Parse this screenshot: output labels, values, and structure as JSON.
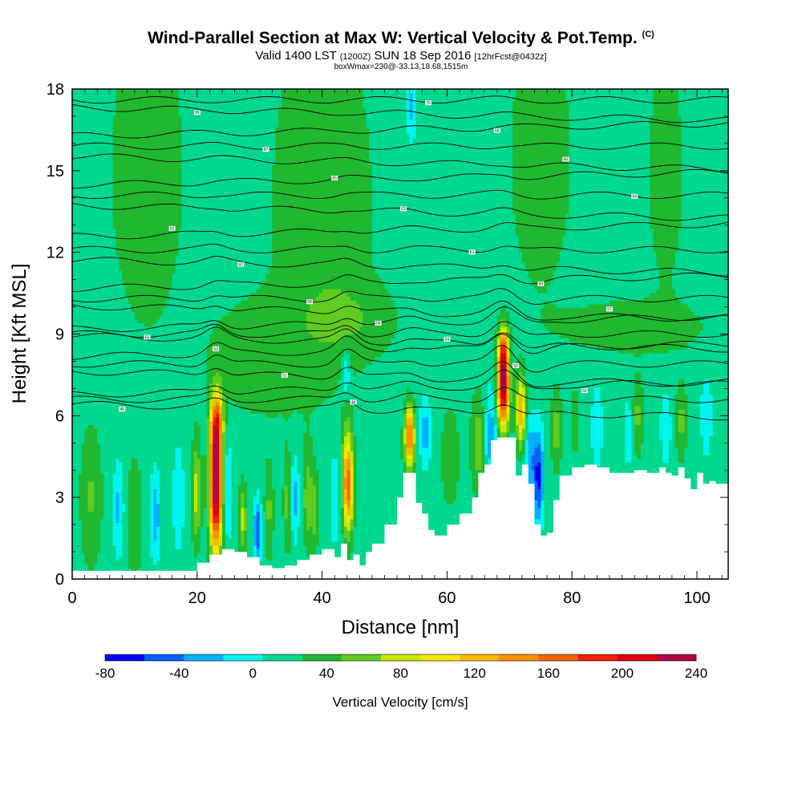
{
  "chart_data": {
    "type": "heatmap",
    "title": "Wind-Parallel Section at Max W: Vertical Velocity & Pot.Temp.",
    "copyright": "(C)",
    "subtitle_main": "Valid 1400 LST",
    "subtitle_utc": "(1200Z)",
    "subtitle_date": "SUN 18 Sep 2016",
    "subtitle_fcst": "[12hrFcst@0432z]",
    "subtitle2": "boxWmax=230@-33.13,18.68,1515m",
    "xlabel": "Distance [nm]",
    "ylabel": "Height [Kft MSL]",
    "xlim": [
      0,
      105
    ],
    "ylim": [
      0,
      18
    ],
    "x_ticks": [
      0,
      20,
      40,
      60,
      80,
      100
    ],
    "y_ticks": [
      0,
      3,
      6,
      9,
      12,
      15,
      18
    ],
    "colorbar": {
      "label": "Vertical Velocity [cm/s]",
      "min": -80,
      "max": 240,
      "step": 20,
      "tick_values": [
        -80,
        -40,
        0,
        40,
        80,
        120,
        160,
        200,
        240
      ],
      "tick_labels": [
        "-80",
        "-40",
        "0",
        "40",
        "80",
        "120",
        "160",
        "200",
        "240"
      ],
      "colors": [
        "#0000ee",
        "#0060ff",
        "#00b0ff",
        "#00f5f0",
        "#00d890",
        "#20b830",
        "#60cc20",
        "#c8e800",
        "#f8e800",
        "#f8b800",
        "#f89000",
        "#f86000",
        "#f02000",
        "#e00000",
        "#b00040"
      ]
    },
    "background_w": 10,
    "terrain": {
      "x": [
        0,
        19,
        20,
        22,
        24,
        26,
        28,
        30,
        32,
        34,
        36,
        38,
        40,
        42,
        43,
        44,
        45,
        46,
        47,
        48,
        50,
        52,
        53,
        54,
        55,
        56,
        57,
        58,
        60,
        62,
        64,
        65,
        66,
        67,
        68,
        70,
        71,
        72,
        73,
        74,
        75,
        76,
        77,
        78,
        80,
        82,
        84,
        86,
        88,
        90,
        92,
        94,
        95,
        96,
        97,
        98,
        99,
        100,
        101,
        102,
        103,
        105
      ],
      "height": [
        0.3,
        0.3,
        0.6,
        0.9,
        1.1,
        1.0,
        0.8,
        0.5,
        0.4,
        0.5,
        0.7,
        0.9,
        1.1,
        0.8,
        1.3,
        0.7,
        0.9,
        0.5,
        1.0,
        1.3,
        2.0,
        3.0,
        3.9,
        3.9,
        2.8,
        2.4,
        1.8,
        1.6,
        2.0,
        2.4,
        3.0,
        3.9,
        4.2,
        5.1,
        5.2,
        5.2,
        3.8,
        4.2,
        3.5,
        2.0,
        1.6,
        1.7,
        2.9,
        3.8,
        4.1,
        4.2,
        4.1,
        3.9,
        3.9,
        4.0,
        3.9,
        4.1,
        3.9,
        3.8,
        4.1,
        3.7,
        3.3,
        3.9,
        3.5,
        3.6,
        3.5,
        3.5
      ]
    },
    "w_features": [
      {
        "x": 23,
        "y": 3.5,
        "sx": 0.7,
        "sy": 1.7,
        "w": 225
      },
      {
        "x": 23.2,
        "y": 5.8,
        "sx": 0.7,
        "sy": 0.8,
        "w": 90
      },
      {
        "x": 69,
        "y": 7.2,
        "sx": 0.65,
        "sy": 1.1,
        "w": 215
      },
      {
        "x": 69,
        "y": 8.5,
        "sx": 0.5,
        "sy": 0.5,
        "w": 60
      },
      {
        "x": 71.8,
        "y": 6.2,
        "sx": 0.5,
        "sy": 0.9,
        "w": 110
      },
      {
        "x": 44.2,
        "y": 3.2,
        "sx": 0.55,
        "sy": 1.1,
        "w": 110
      },
      {
        "x": 44.0,
        "y": 4.4,
        "sx": 0.6,
        "sy": 1.2,
        "w": 50
      },
      {
        "x": 54.0,
        "y": 5.4,
        "sx": 0.5,
        "sy": 0.7,
        "w": 110
      },
      {
        "x": 54.0,
        "y": 4.6,
        "sx": 0.7,
        "sy": 1.0,
        "w": 40
      },
      {
        "x": 19.9,
        "y": 3.2,
        "sx": 0.5,
        "sy": 1.3,
        "w": 60
      },
      {
        "x": 27.3,
        "y": 2.2,
        "sx": 0.45,
        "sy": 0.9,
        "w": 55
      },
      {
        "x": 31.5,
        "y": 2.5,
        "sx": 0.5,
        "sy": 1.2,
        "w": 35
      },
      {
        "x": 34.5,
        "y": 2.8,
        "sx": 0.45,
        "sy": 1.2,
        "w": 40
      },
      {
        "x": 37.7,
        "y": 3.0,
        "sx": 0.5,
        "sy": 1.2,
        "w": 45
      },
      {
        "x": 38.8,
        "y": 2.5,
        "sx": 0.4,
        "sy": 1.0,
        "w": 40
      },
      {
        "x": 65,
        "y": 5.0,
        "sx": 0.8,
        "sy": 1.2,
        "w": 45
      },
      {
        "x": 77.5,
        "y": 5.5,
        "sx": 0.6,
        "sy": 1.0,
        "w": 40
      },
      {
        "x": 80.5,
        "y": 5.8,
        "sx": 0.5,
        "sy": 0.8,
        "w": 30
      },
      {
        "x": 90.5,
        "y": 6.0,
        "sx": 0.6,
        "sy": 1.0,
        "w": 35
      },
      {
        "x": 97.5,
        "y": 5.8,
        "sx": 0.6,
        "sy": 1.0,
        "w": 35
      },
      {
        "x": 74.6,
        "y": 3.8,
        "sx": 0.55,
        "sy": 1.2,
        "w": -80
      },
      {
        "x": 73.3,
        "y": 4.5,
        "sx": 0.5,
        "sy": 1.0,
        "w": -45
      },
      {
        "x": 67,
        "y": 5.2,
        "sx": 0.7,
        "sy": 1.2,
        "w": -45
      },
      {
        "x": 24.9,
        "y": 3.3,
        "sx": 0.45,
        "sy": 1.3,
        "w": -35
      },
      {
        "x": 29.7,
        "y": 1.8,
        "sx": 0.4,
        "sy": 0.8,
        "w": -70
      },
      {
        "x": 13.3,
        "y": 2.4,
        "sx": 0.55,
        "sy": 1.1,
        "w": -45
      },
      {
        "x": 7.4,
        "y": 2.6,
        "sx": 0.6,
        "sy": 1.2,
        "w": -35
      },
      {
        "x": 17.0,
        "y": 3.0,
        "sx": 0.6,
        "sy": 1.3,
        "w": -30
      },
      {
        "x": 35.6,
        "y": 3.0,
        "sx": 0.5,
        "sy": 1.1,
        "w": -40
      },
      {
        "x": 42.0,
        "y": 3.0,
        "sx": 0.5,
        "sy": 1.2,
        "w": -30
      },
      {
        "x": 56.5,
        "y": 5.4,
        "sx": 0.6,
        "sy": 0.9,
        "w": -40
      },
      {
        "x": 43.8,
        "y": 7.5,
        "sx": 0.45,
        "sy": 0.6,
        "w": -40
      },
      {
        "x": 54.3,
        "y": 17.4,
        "sx": 0.5,
        "sy": 1.0,
        "w": -35
      },
      {
        "x": 84.0,
        "y": 5.6,
        "sx": 0.6,
        "sy": 1.0,
        "w": -30
      },
      {
        "x": 89.0,
        "y": 5.4,
        "sx": 0.5,
        "sy": 0.9,
        "w": -25
      },
      {
        "x": 95.0,
        "y": 5.6,
        "sx": 0.6,
        "sy": 1.0,
        "w": -25
      },
      {
        "x": 101.5,
        "y": 6.0,
        "sx": 0.6,
        "sy": 1.0,
        "w": -30
      },
      {
        "x": 3.0,
        "y": 3.0,
        "sx": 1.2,
        "sy": 1.8,
        "w": 32
      },
      {
        "x": 10.0,
        "y": 2.2,
        "sx": 0.8,
        "sy": 1.5,
        "w": 30
      },
      {
        "x": 60.5,
        "y": 4.5,
        "sx": 1.0,
        "sy": 1.2,
        "w": 30
      },
      {
        "x": 40.0,
        "y": 14.0,
        "sx": 5.5,
        "sy": 4.5,
        "w": 28
      },
      {
        "x": 12.0,
        "y": 15.0,
        "sx": 4.0,
        "sy": 4.0,
        "w": 27
      },
      {
        "x": 75.0,
        "y": 15.5,
        "sx": 3.5,
        "sy": 3.5,
        "w": 25
      },
      {
        "x": 90.0,
        "y": 9.3,
        "sx": 8.0,
        "sy": 0.7,
        "w": 25
      },
      {
        "x": 30.0,
        "y": 8.2,
        "sx": 6.0,
        "sy": 1.5,
        "w": 24
      },
      {
        "x": 95.0,
        "y": 15.0,
        "sx": 2.0,
        "sy": 3.0,
        "w": 24
      },
      {
        "x": 45.0,
        "y": 9.5,
        "sx": 5.0,
        "sy": 1.0,
        "w": 22
      }
    ],
    "isentropes": {
      "levels": [
        6.2,
        6.6,
        7.0,
        7.4,
        7.9,
        8.4,
        8.7,
        9.0,
        9.4,
        9.8,
        10.3,
        10.9,
        11.5,
        12.1,
        12.8,
        13.5,
        14.1,
        14.7,
        15.3,
        15.9,
        16.5,
        17.1,
        17.6
      ],
      "labels": [
        "45",
        "48",
        "50",
        "51",
        "52",
        "53",
        "54",
        "55",
        "56",
        "57",
        "58",
        "59",
        "60",
        "61",
        "62",
        "63",
        "64",
        "65",
        "66",
        "67",
        "68",
        "69",
        "70"
      ],
      "perturbations": [
        {
          "x": 23,
          "sx": 1.5,
          "amp": 0.4
        },
        {
          "x": 44,
          "sx": 1.5,
          "amp": 0.5
        },
        {
          "x": 54,
          "sx": 1.8,
          "amp": 0.2
        },
        {
          "x": 69,
          "sx": 1.8,
          "amp": 0.7
        },
        {
          "x": 74,
          "sx": 2.0,
          "amp": -0.2
        }
      ]
    }
  }
}
